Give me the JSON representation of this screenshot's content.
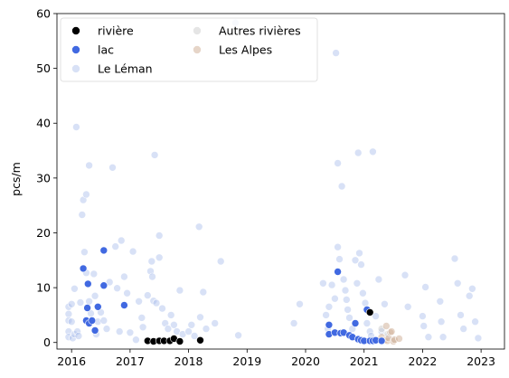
{
  "chart_data": {
    "type": "scatter",
    "title": "",
    "xlabel": "",
    "ylabel": "pcs/m",
    "xlim": [
      2015.75,
      2023.4
    ],
    "ylim": [
      -1.2,
      60
    ],
    "x_ticks": [
      2016,
      2017,
      2018,
      2019,
      2020,
      2021,
      2022,
      2023
    ],
    "x_tick_labels": [
      "2016",
      "2017",
      "2018",
      "2019",
      "2020",
      "2021",
      "2022",
      "2023"
    ],
    "y_ticks": [
      0,
      10,
      20,
      30,
      40,
      50,
      60
    ],
    "y_tick_labels": [
      "0",
      "10",
      "20",
      "30",
      "40",
      "50",
      "60"
    ],
    "grid": false,
    "legend_placement": "upper-left",
    "series": [
      {
        "name": "rivière",
        "color": "#000000",
        "opacity": 1.0,
        "points": [
          [
            2017.3,
            0.3
          ],
          [
            2017.4,
            0.2
          ],
          [
            2017.5,
            0.3
          ],
          [
            2017.58,
            0.3
          ],
          [
            2017.68,
            0.3
          ],
          [
            2017.75,
            0.7
          ],
          [
            2017.85,
            0.2
          ],
          [
            2018.2,
            0.4
          ],
          [
            2021.1,
            5.5
          ]
        ]
      },
      {
        "name": "lac",
        "color": "#4169e1",
        "opacity": 1.0,
        "points": [
          [
            2016.2,
            13.5
          ],
          [
            2016.25,
            4.0
          ],
          [
            2016.27,
            6.3
          ],
          [
            2016.28,
            10.7
          ],
          [
            2016.3,
            3.5
          ],
          [
            2016.35,
            4.0
          ],
          [
            2016.4,
            2.2
          ],
          [
            2016.45,
            6.5
          ],
          [
            2016.55,
            10.4
          ],
          [
            2016.55,
            16.8
          ],
          [
            2016.9,
            6.8
          ],
          [
            2020.4,
            3.2
          ],
          [
            2020.4,
            1.5
          ],
          [
            2020.5,
            1.8
          ],
          [
            2020.55,
            12.9
          ],
          [
            2020.6,
            1.7
          ],
          [
            2020.65,
            1.8
          ],
          [
            2020.75,
            1.3
          ],
          [
            2020.8,
            1.0
          ],
          [
            2020.85,
            3.5
          ],
          [
            2020.9,
            0.6
          ],
          [
            2020.95,
            0.4
          ],
          [
            2021.0,
            0.3
          ],
          [
            2021.05,
            6.0
          ],
          [
            2021.1,
            0.3
          ],
          [
            2021.15,
            0.3
          ],
          [
            2021.2,
            0.4
          ],
          [
            2021.3,
            0.3
          ]
        ]
      },
      {
        "name": "Le Léman",
        "color": "#a8bcec",
        "opacity": 0.45,
        "points": [
          [
            2015.95,
            6.5
          ],
          [
            2015.95,
            5.2
          ],
          [
            2015.95,
            4.0
          ],
          [
            2015.95,
            2.0
          ],
          [
            2015.95,
            1.0
          ],
          [
            2016.0,
            7.0
          ],
          [
            2016.0,
            3.8
          ],
          [
            2016.02,
            0.8
          ],
          [
            2016.05,
            9.8
          ],
          [
            2016.05,
            1.5
          ],
          [
            2016.08,
            39.3
          ],
          [
            2016.1,
            2.0
          ],
          [
            2016.12,
            1.2
          ],
          [
            2016.15,
            7.3
          ],
          [
            2016.18,
            23.3
          ],
          [
            2016.2,
            26.0
          ],
          [
            2016.25,
            27.0
          ],
          [
            2016.22,
            16.5
          ],
          [
            2016.25,
            12.7
          ],
          [
            2016.3,
            32.3
          ],
          [
            2016.3,
            7.5
          ],
          [
            2016.33,
            5.3
          ],
          [
            2016.38,
            12.5
          ],
          [
            2016.4,
            8.5
          ],
          [
            2016.42,
            1.5
          ],
          [
            2016.45,
            3.8
          ],
          [
            2016.5,
            5.5
          ],
          [
            2016.55,
            4.0
          ],
          [
            2016.6,
            2.5
          ],
          [
            2016.65,
            11.0
          ],
          [
            2016.7,
            31.9
          ],
          [
            2016.75,
            17.5
          ],
          [
            2016.78,
            9.9
          ],
          [
            2016.82,
            2.0
          ],
          [
            2016.85,
            18.6
          ],
          [
            2016.9,
            12.0
          ],
          [
            2016.95,
            9.0
          ],
          [
            2017.0,
            1.8
          ],
          [
            2017.05,
            16.6
          ],
          [
            2017.1,
            0.5
          ],
          [
            2017.15,
            7.5
          ],
          [
            2017.2,
            4.5
          ],
          [
            2017.22,
            2.8
          ],
          [
            2017.3,
            8.6
          ],
          [
            2017.35,
            13.0
          ],
          [
            2017.37,
            14.8
          ],
          [
            2017.38,
            12.0
          ],
          [
            2017.4,
            7.6
          ],
          [
            2017.42,
            34.2
          ],
          [
            2017.45,
            7.2
          ],
          [
            2017.5,
            19.5
          ],
          [
            2017.5,
            15.5
          ],
          [
            2017.55,
            6.2
          ],
          [
            2017.6,
            3.5
          ],
          [
            2017.65,
            2.5
          ],
          [
            2017.7,
            5.0
          ],
          [
            2017.75,
            3.2
          ],
          [
            2017.8,
            2.0
          ],
          [
            2017.85,
            9.5
          ],
          [
            2017.9,
            1.5
          ],
          [
            2018.0,
            2.0
          ],
          [
            2018.05,
            3.2
          ],
          [
            2018.1,
            1.2
          ],
          [
            2018.18,
            21.1
          ],
          [
            2018.2,
            4.6
          ],
          [
            2018.25,
            9.2
          ],
          [
            2018.3,
            2.5
          ],
          [
            2018.45,
            3.5
          ],
          [
            2018.55,
            14.8
          ],
          [
            2018.8,
            58.3
          ],
          [
            2018.85,
            1.3
          ],
          [
            2019.8,
            3.5
          ],
          [
            2019.9,
            7.0
          ],
          [
            2020.3,
            10.8
          ],
          [
            2020.35,
            5.0
          ],
          [
            2020.38,
            2.5
          ],
          [
            2020.4,
            6.5
          ],
          [
            2020.45,
            10.5
          ],
          [
            2020.5,
            8.0
          ],
          [
            2020.52,
            52.8
          ],
          [
            2020.55,
            32.7
          ],
          [
            2020.55,
            17.4
          ],
          [
            2020.58,
            15.2
          ],
          [
            2020.62,
            28.5
          ],
          [
            2020.65,
            11.5
          ],
          [
            2020.68,
            9.5
          ],
          [
            2020.7,
            7.8
          ],
          [
            2020.72,
            6.0
          ],
          [
            2020.75,
            4.5
          ],
          [
            2020.8,
            2.5
          ],
          [
            2020.85,
            15.0
          ],
          [
            2020.88,
            10.8
          ],
          [
            2020.9,
            34.6
          ],
          [
            2020.92,
            16.3
          ],
          [
            2020.95,
            14.2
          ],
          [
            2020.98,
            9.0
          ],
          [
            2021.02,
            7.2
          ],
          [
            2021.05,
            3.5
          ],
          [
            2021.1,
            2.0
          ],
          [
            2021.12,
            1.2
          ],
          [
            2021.15,
            34.8
          ],
          [
            2021.2,
            4.8
          ],
          [
            2021.25,
            11.5
          ],
          [
            2021.3,
            2.0
          ],
          [
            2021.35,
            7.0
          ],
          [
            2021.4,
            1.0
          ],
          [
            2021.7,
            12.3
          ],
          [
            2021.75,
            6.5
          ],
          [
            2022.0,
            4.8
          ],
          [
            2022.02,
            3.0
          ],
          [
            2022.05,
            10.1
          ],
          [
            2022.1,
            1.0
          ],
          [
            2022.3,
            7.5
          ],
          [
            2022.32,
            3.8
          ],
          [
            2022.35,
            1.0
          ],
          [
            2022.55,
            15.3
          ],
          [
            2022.6,
            10.8
          ],
          [
            2022.65,
            5.0
          ],
          [
            2022.7,
            2.5
          ],
          [
            2022.8,
            8.5
          ],
          [
            2022.85,
            9.8
          ],
          [
            2022.9,
            3.8
          ],
          [
            2022.95,
            0.8
          ]
        ]
      },
      {
        "name": "Autres rivières",
        "color": "#cfcfcf",
        "opacity": 0.55,
        "points": [
          [
            2021.3,
            2.5
          ],
          [
            2021.4,
            1.5
          ],
          [
            2021.5,
            0.5
          ]
        ]
      },
      {
        "name": "Les Alpes",
        "color": "#d2b39a",
        "opacity": 0.55,
        "points": [
          [
            2021.3,
            1.0
          ],
          [
            2021.35,
            0.4
          ],
          [
            2021.38,
            3.0
          ],
          [
            2021.4,
            0.3
          ],
          [
            2021.42,
            0.8
          ],
          [
            2021.45,
            1.8
          ],
          [
            2021.47,
            2.0
          ],
          [
            2021.5,
            0.2
          ],
          [
            2021.52,
            0.5
          ],
          [
            2021.6,
            0.7
          ]
        ]
      }
    ]
  }
}
